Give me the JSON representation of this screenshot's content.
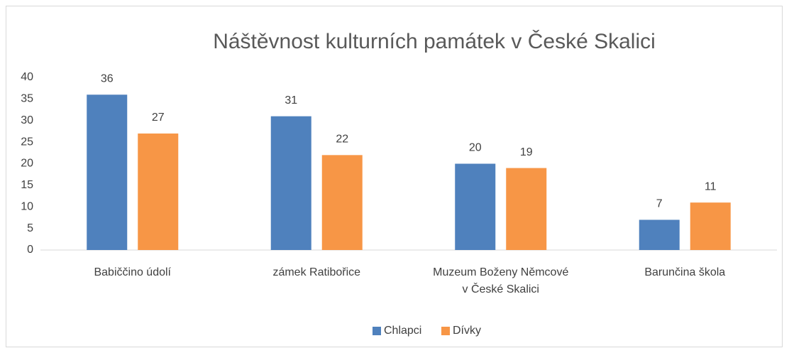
{
  "chart_data": {
    "type": "bar",
    "title": "Náštěvnost kulturních památek v České Skalici",
    "categories": [
      "Babiččino údolí",
      "zámek Ratibořice",
      "Muzeum Boženy Němcové v České Skalici",
      "Barunčina škola"
    ],
    "series": [
      {
        "name": "Chlapci",
        "color": "#4f81bd",
        "values": [
          36,
          31,
          20,
          7
        ]
      },
      {
        "name": "Dívky",
        "color": "#f79646",
        "values": [
          27,
          22,
          19,
          11
        ]
      }
    ],
    "ylim": [
      0,
      40
    ],
    "yticks": [
      0,
      5,
      10,
      15,
      20,
      25,
      30,
      35,
      40
    ],
    "grid": false,
    "legend": "bottom"
  }
}
